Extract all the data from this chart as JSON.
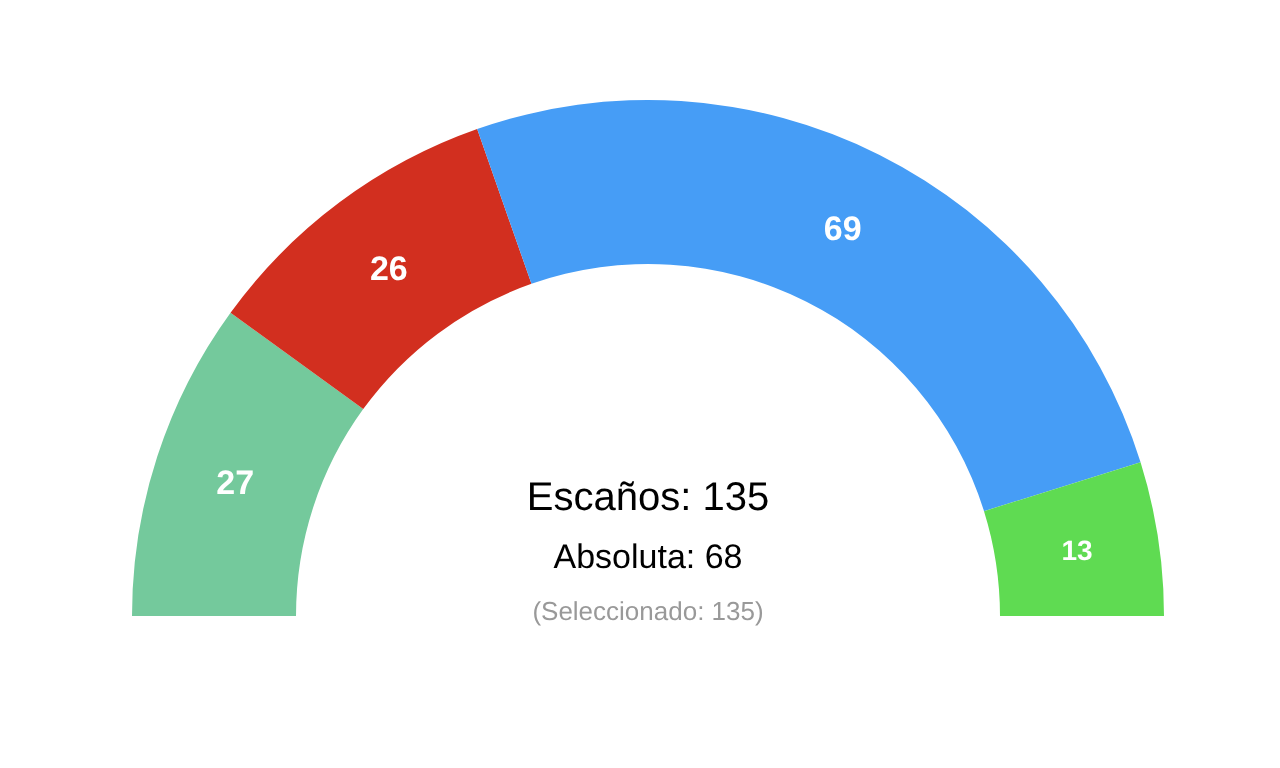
{
  "chart_data": {
    "type": "donut",
    "categories": [
      null,
      null,
      null,
      null
    ],
    "values": [
      27,
      26,
      69,
      13
    ],
    "colors": [
      "#74c99c",
      "#d22f1f",
      "#469df6",
      "#5fdb52"
    ],
    "data_labels": true,
    "annotations": [
      "Escaños: 135",
      "Absoluta: 68",
      "(Seleccionado: 135)"
    ]
  }
}
